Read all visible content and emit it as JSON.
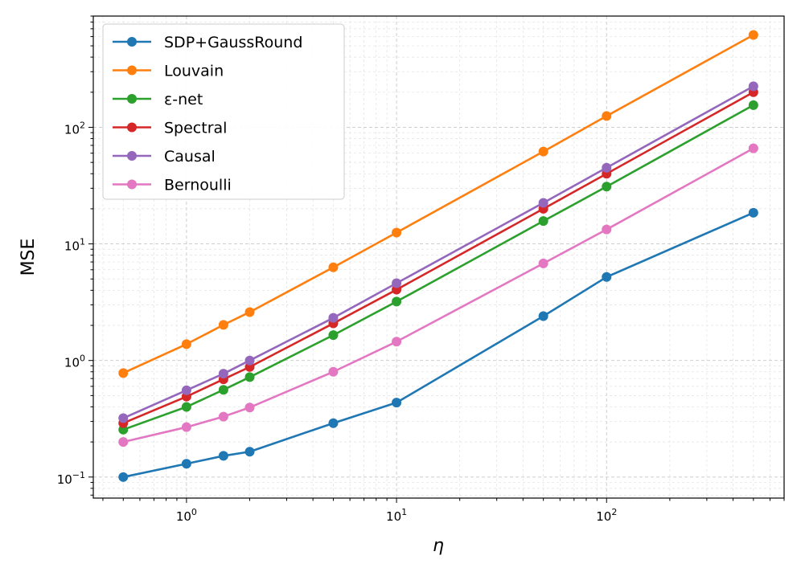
{
  "chart_data": {
    "type": "line",
    "xlabel": "η",
    "ylabel": "MSE",
    "x_scale": "log",
    "y_scale": "log",
    "xlim": [
      0.36,
      700
    ],
    "ylim": [
      0.066,
      900
    ],
    "grid": true,
    "legend_position": "top-left",
    "x_ticks": [
      {
        "base": "10",
        "exp": "0",
        "value": 1
      },
      {
        "base": "10",
        "exp": "1",
        "value": 10
      },
      {
        "base": "10",
        "exp": "2",
        "value": 100
      }
    ],
    "y_ticks": [
      {
        "base": "10",
        "exp": "−1",
        "value": 0.1
      },
      {
        "base": "10",
        "exp": "0",
        "value": 1
      },
      {
        "base": "10",
        "exp": "1",
        "value": 10
      },
      {
        "base": "10",
        "exp": "2",
        "value": 100
      }
    ],
    "x": [
      0.5,
      1,
      1.5,
      2,
      5,
      10,
      50,
      100,
      500
    ],
    "series": [
      {
        "name": "SDP+GaussRound",
        "color": "#1f77b4",
        "values": [
          0.1,
          0.13,
          0.152,
          0.165,
          0.29,
          0.435,
          2.4,
          5.2,
          18.5
        ]
      },
      {
        "name": "Louvain",
        "color": "#ff7f0e",
        "values": [
          0.78,
          1.38,
          2.02,
          2.6,
          6.3,
          12.5,
          62,
          125,
          620
        ]
      },
      {
        "name": "ε-net",
        "color": "#2ca02c",
        "values": [
          0.255,
          0.4,
          0.56,
          0.72,
          1.65,
          3.2,
          15.7,
          31,
          155
        ]
      },
      {
        "name": "Spectral",
        "color": "#d62728",
        "values": [
          0.29,
          0.49,
          0.69,
          0.88,
          2.08,
          4.05,
          20,
          40,
          200
        ]
      },
      {
        "name": "Causal",
        "color": "#9467bd",
        "values": [
          0.32,
          0.555,
          0.77,
          1.0,
          2.32,
          4.6,
          22.5,
          45,
          225
        ]
      },
      {
        "name": "Bernoulli",
        "color": "#e377c2",
        "values": [
          0.2,
          0.268,
          0.33,
          0.395,
          0.8,
          1.45,
          6.8,
          13.3,
          66
        ]
      }
    ]
  }
}
